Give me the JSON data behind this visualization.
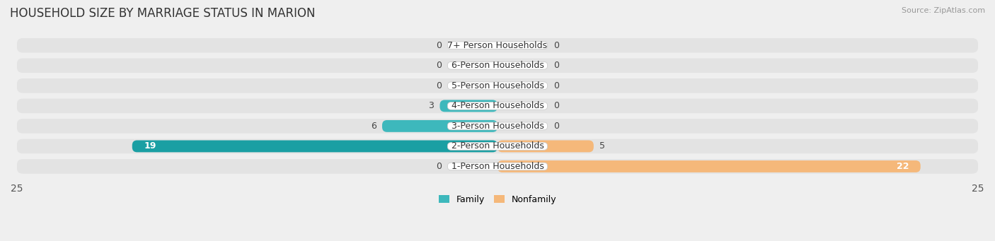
{
  "title": "HOUSEHOLD SIZE BY MARRIAGE STATUS IN MARION",
  "source": "Source: ZipAtlas.com",
  "categories": [
    "7+ Person Households",
    "6-Person Households",
    "5-Person Households",
    "4-Person Households",
    "3-Person Households",
    "2-Person Households",
    "1-Person Households"
  ],
  "family": [
    0,
    0,
    0,
    3,
    6,
    19,
    0
  ],
  "nonfamily": [
    0,
    0,
    0,
    0,
    0,
    5,
    22
  ],
  "family_color": "#3db8bc",
  "family_color_dark": "#1a9fa3",
  "nonfamily_color": "#f5b87a",
  "xlim": 25,
  "bg_color": "#efefef",
  "row_bg_color": "#e3e3e3",
  "label_bg_color": "#ffffff",
  "title_fontsize": 12,
  "axis_fontsize": 10,
  "label_fontsize": 9,
  "value_fontsize": 9
}
